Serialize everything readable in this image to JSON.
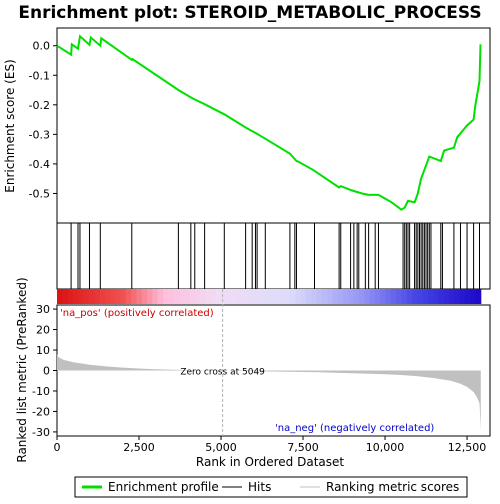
{
  "chart_data": {
    "type": "line",
    "title": "Enrichment plot: STEROID_METABOLIC_PROCESS",
    "es_panel": {
      "ylabel": "Enrichment score (ES)",
      "ylim": [
        -0.6,
        0.06
      ],
      "yticks": [
        0.0,
        -0.1,
        -0.2,
        -0.3,
        -0.4,
        -0.5
      ],
      "ytick_labels": [
        "0.0",
        "-0.1",
        "-0.2",
        "-0.3",
        "-0.4",
        "-0.5"
      ],
      "line_color": "#00e000",
      "points": [
        [
          0,
          0.0
        ],
        [
          430,
          -0.03
        ],
        [
          450,
          0.005
        ],
        [
          640,
          -0.01
        ],
        [
          700,
          0.032
        ],
        [
          990,
          0.003
        ],
        [
          1030,
          0.028
        ],
        [
          1320,
          0.0
        ],
        [
          1350,
          0.025
        ],
        [
          2280,
          -0.048
        ],
        [
          2300,
          -0.045
        ],
        [
          3700,
          -0.15
        ],
        [
          4080,
          -0.175
        ],
        [
          4200,
          -0.182
        ],
        [
          4500,
          -0.198
        ],
        [
          5100,
          -0.232
        ],
        [
          5800,
          -0.28
        ],
        [
          6050,
          -0.295
        ],
        [
          6200,
          -0.305
        ],
        [
          6400,
          -0.318
        ],
        [
          7100,
          -0.365
        ],
        [
          7300,
          -0.39
        ],
        [
          7350,
          -0.392
        ],
        [
          7800,
          -0.42
        ],
        [
          8600,
          -0.48
        ],
        [
          8650,
          -0.475
        ],
        [
          9000,
          -0.49
        ],
        [
          9300,
          -0.5
        ],
        [
          9500,
          -0.505
        ],
        [
          9800,
          -0.505
        ],
        [
          10200,
          -0.53
        ],
        [
          10500,
          -0.555
        ],
        [
          10600,
          -0.548
        ],
        [
          10700,
          -0.525
        ],
        [
          10900,
          -0.53
        ],
        [
          11000,
          -0.5
        ],
        [
          11100,
          -0.45
        ],
        [
          11200,
          -0.42
        ],
        [
          11300,
          -0.39
        ],
        [
          11350,
          -0.375
        ],
        [
          11700,
          -0.39
        ],
        [
          11800,
          -0.355
        ],
        [
          12100,
          -0.345
        ],
        [
          12200,
          -0.31
        ],
        [
          12500,
          -0.27
        ],
        [
          12700,
          -0.25
        ],
        [
          12750,
          -0.205
        ],
        [
          12880,
          -0.12
        ],
        [
          12910,
          0.005
        ]
      ]
    },
    "hits": [
      430,
      640,
      700,
      990,
      1320,
      2280,
      3700,
      4080,
      4200,
      4500,
      5100,
      5750,
      5950,
      6050,
      6100,
      6350,
      7100,
      7250,
      7300,
      7850,
      8600,
      8650,
      8950,
      9050,
      9150,
      9200,
      9400,
      9500,
      9700,
      9800,
      10550,
      10600,
      10650,
      10700,
      10750,
      10900,
      10950,
      11000,
      11050,
      11100,
      11150,
      11200,
      11250,
      11300,
      11350,
      11400,
      11700,
      11750,
      12100,
      12300,
      12500,
      12700,
      12880
    ],
    "metric_panel": {
      "ylabel": "Ranked list metric (PreRanked)",
      "xlabel": "Rank in Ordered Dataset",
      "ylim": [
        -32,
        32
      ],
      "yticks": [
        30,
        20,
        10,
        0,
        -10,
        -20,
        -30
      ],
      "ytick_labels": [
        "30",
        "20",
        "10",
        "0",
        "-10",
        "-20",
        "-30"
      ],
      "xlim": [
        0,
        13200
      ],
      "xticks": [
        0,
        2500,
        5000,
        7500,
        10000,
        12500
      ],
      "xtick_labels": [
        "0",
        "2,500",
        "5,000",
        "7,500",
        "10,000",
        "12,500"
      ],
      "profile": [
        [
          0,
          8.0
        ],
        [
          50,
          6.5
        ],
        [
          200,
          5.2
        ],
        [
          500,
          4.0
        ],
        [
          1000,
          2.8
        ],
        [
          1500,
          2.0
        ],
        [
          2000,
          1.4
        ],
        [
          2500,
          1.0
        ],
        [
          3000,
          0.6
        ],
        [
          4000,
          0.2
        ],
        [
          5049,
          0.0
        ],
        [
          6000,
          -0.3
        ],
        [
          7000,
          -0.6
        ],
        [
          8000,
          -0.9
        ],
        [
          9000,
          -1.3
        ],
        [
          10000,
          -1.8
        ],
        [
          10500,
          -2.2
        ],
        [
          11000,
          -2.8
        ],
        [
          11500,
          -3.7
        ],
        [
          12000,
          -5.0
        ],
        [
          12300,
          -6.5
        ],
        [
          12500,
          -8.0
        ],
        [
          12700,
          -10.5
        ],
        [
          12800,
          -13.0
        ],
        [
          12880,
          -16.0
        ],
        [
          12920,
          -29.0
        ]
      ],
      "zero_cross_rank": 5049,
      "zero_cross_label": "Zero cross at 5049",
      "pos_label": "'na_pos' (positively correlated)",
      "neg_label": "'na_neg' (negatively correlated)"
    },
    "legend": [
      {
        "label": "Enrichment profile",
        "color": "#00e000"
      },
      {
        "label": "Hits",
        "color": "#000000"
      },
      {
        "label": "Ranking metric scores",
        "color": "#c0c0c0"
      }
    ]
  }
}
